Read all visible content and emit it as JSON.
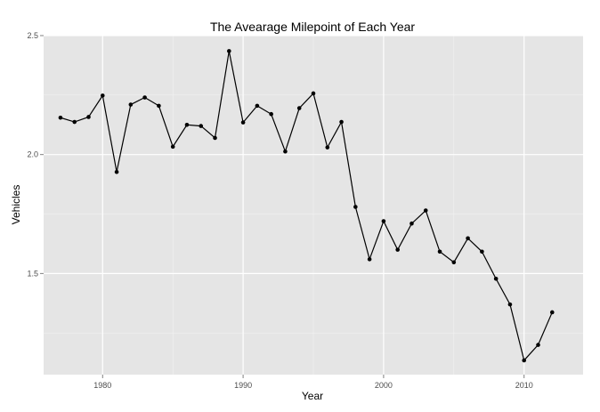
{
  "chart_data": {
    "type": "line",
    "title": "The Avearage Milepoint of Each Year",
    "xlabel": "Year",
    "ylabel": "Vehicles",
    "x_ticks": [
      1980,
      1990,
      2000,
      2010
    ],
    "y_ticks": [
      1.5,
      2.0,
      2.5
    ],
    "y_tick_labels": [
      "1.5",
      "2.0",
      "2.5"
    ],
    "xlim": [
      1975.8,
      2014.2
    ],
    "ylim": [
      1.075,
      2.5
    ],
    "grid": true,
    "legend": "none",
    "series": [
      {
        "x": [
          1977,
          1978,
          1979,
          1980,
          1981,
          1982,
          1983,
          1984,
          1985,
          1986,
          1987,
          1988,
          1989,
          1990,
          1991,
          1992,
          1993,
          1994,
          1995,
          1996,
          1997,
          1998,
          1999,
          2000,
          2001,
          2002,
          2003,
          2004,
          2005,
          2006,
          2007,
          2008,
          2009,
          2010,
          2011,
          2012
        ],
        "values": [
          2.155,
          2.137,
          2.158,
          2.248,
          1.927,
          2.21,
          2.24,
          2.205,
          2.033,
          2.125,
          2.12,
          2.07,
          2.435,
          2.135,
          2.205,
          2.17,
          2.013,
          2.195,
          2.257,
          2.03,
          2.137,
          1.78,
          1.56,
          1.72,
          1.6,
          1.71,
          1.765,
          1.592,
          1.547,
          1.648,
          1.592,
          1.478,
          1.37,
          1.135,
          1.2,
          1.337
        ]
      }
    ],
    "colors": {
      "panel_background": "#e5e5e5",
      "grid_major": "#ffffff",
      "grid_minor": "#f2f2f2",
      "line": "#000000",
      "point": "#000000"
    }
  }
}
